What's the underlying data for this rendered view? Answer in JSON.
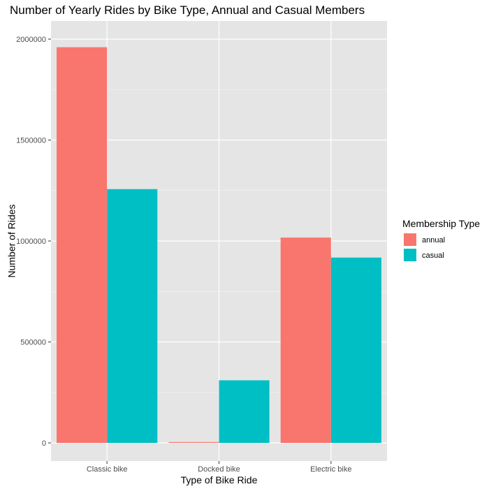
{
  "chart_data": {
    "type": "bar",
    "title": "Number of Yearly Rides by Bike Type, Annual and Casual Members",
    "xlabel": "Type of Bike Ride",
    "ylabel": "Number of Rides",
    "categories": [
      "Classic bike",
      "Docked bike",
      "Electric bike"
    ],
    "series": [
      {
        "name": "annual",
        "color": "#F8766D",
        "values": [
          1960000,
          4000,
          1017000
        ]
      },
      {
        "name": "casual",
        "color": "#00BFC4",
        "values": [
          1257000,
          310000,
          918000
        ]
      }
    ],
    "ylim": [
      -90000,
      2090000
    ],
    "yticks": [
      0,
      500000,
      1000000,
      1500000,
      2000000
    ],
    "ytick_labels": [
      "0",
      "500000",
      "1000000",
      "1500000",
      "2000000"
    ],
    "legend": {
      "title": "Membership Type",
      "placement": "right"
    },
    "panel_background": "#E5E5E5",
    "grid": true
  }
}
